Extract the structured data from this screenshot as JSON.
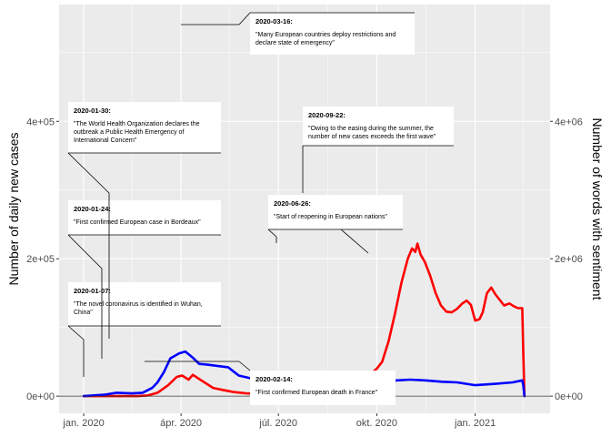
{
  "chart_data": {
    "type": "line",
    "ylabel": "Number of daily new cases",
    "y2label": "Number of words with sentiment",
    "x_ticks": [
      {
        "date": "2020-01-01",
        "label": "jan. 2020"
      },
      {
        "date": "2020-04-01",
        "label": "ápr. 2020"
      },
      {
        "date": "2020-07-01",
        "label": "júl. 2020"
      },
      {
        "date": "2020-10-01",
        "label": "okt. 2020"
      },
      {
        "date": "2021-01-01",
        "label": "jan. 2021"
      }
    ],
    "xlim": [
      "2019-12-09",
      "2021-03-12"
    ],
    "ylim": [
      -25000,
      570000
    ],
    "y_ticks": [
      {
        "value": 0,
        "label": "0e+00"
      },
      {
        "value": 200000,
        "label": "2e+05"
      },
      {
        "value": 400000,
        "label": "4e+05"
      }
    ],
    "y2lim": [
      -250000,
      5700000
    ],
    "y2_ticks": [
      {
        "value": 0,
        "label": "0e+00"
      },
      {
        "value": 2000000,
        "label": "2e+06"
      },
      {
        "value": 4000000,
        "label": "4e+06"
      }
    ],
    "grid": true,
    "zero_line": true,
    "series": [
      {
        "color": "#ff0000",
        "axis": "left",
        "points": [
          [
            "2020-01-01",
            0
          ],
          [
            "2020-02-01",
            0
          ],
          [
            "2020-02-20",
            0
          ],
          [
            "2020-03-01",
            1000
          ],
          [
            "2020-03-10",
            5000
          ],
          [
            "2020-03-20",
            16000
          ],
          [
            "2020-03-28",
            28000
          ],
          [
            "2020-04-02",
            30000
          ],
          [
            "2020-04-08",
            24000
          ],
          [
            "2020-04-12",
            31000
          ],
          [
            "2020-04-18",
            25000
          ],
          [
            "2020-04-25",
            18000
          ],
          [
            "2020-05-01",
            12000
          ],
          [
            "2020-05-10",
            9000
          ],
          [
            "2020-05-20",
            6000
          ],
          [
            "2020-06-01",
            4000
          ],
          [
            "2020-06-15",
            3000
          ],
          [
            "2020-07-01",
            4000
          ],
          [
            "2020-07-20",
            5000
          ],
          [
            "2020-08-01",
            6000
          ],
          [
            "2020-08-20",
            10000
          ],
          [
            "2020-09-01",
            18000
          ],
          [
            "2020-09-15",
            28000
          ],
          [
            "2020-09-25",
            32000
          ],
          [
            "2020-10-01",
            40000
          ],
          [
            "2020-10-06",
            50000
          ],
          [
            "2020-10-12",
            80000
          ],
          [
            "2020-10-18",
            120000
          ],
          [
            "2020-10-24",
            165000
          ],
          [
            "2020-10-30",
            200000
          ],
          [
            "2020-11-03",
            215000
          ],
          [
            "2020-11-06",
            210000
          ],
          [
            "2020-11-08",
            222000
          ],
          [
            "2020-11-11",
            206000
          ],
          [
            "2020-11-15",
            195000
          ],
          [
            "2020-11-20",
            175000
          ],
          [
            "2020-11-25",
            150000
          ],
          [
            "2020-11-30",
            132000
          ],
          [
            "2020-12-05",
            123000
          ],
          [
            "2020-12-10",
            122000
          ],
          [
            "2020-12-15",
            127000
          ],
          [
            "2020-12-20",
            135000
          ],
          [
            "2020-12-24",
            139000
          ],
          [
            "2020-12-28",
            133000
          ],
          [
            "2021-01-01",
            110000
          ],
          [
            "2021-01-05",
            112000
          ],
          [
            "2021-01-08",
            122000
          ],
          [
            "2021-01-12",
            150000
          ],
          [
            "2021-01-16",
            158000
          ],
          [
            "2021-01-20",
            148000
          ],
          [
            "2021-01-24",
            140000
          ],
          [
            "2021-01-28",
            132000
          ],
          [
            "2021-02-02",
            135000
          ],
          [
            "2021-02-06",
            131000
          ],
          [
            "2021-02-10",
            128000
          ],
          [
            "2021-02-14",
            128000
          ],
          [
            "2021-02-15",
            60000
          ],
          [
            "2021-02-16",
            0
          ]
        ]
      },
      {
        "color": "#0000ff",
        "axis": "right",
        "points": [
          [
            "2020-01-01",
            0
          ],
          [
            "2020-01-20",
            20000
          ],
          [
            "2020-02-01",
            50000
          ],
          [
            "2020-02-15",
            40000
          ],
          [
            "2020-02-25",
            50000
          ],
          [
            "2020-03-05",
            120000
          ],
          [
            "2020-03-10",
            200000
          ],
          [
            "2020-03-16",
            350000
          ],
          [
            "2020-03-22",
            550000
          ],
          [
            "2020-03-30",
            620000
          ],
          [
            "2020-04-05",
            650000
          ],
          [
            "2020-04-12",
            560000
          ],
          [
            "2020-04-18",
            470000
          ],
          [
            "2020-04-25",
            460000
          ],
          [
            "2020-05-05",
            440000
          ],
          [
            "2020-05-15",
            420000
          ],
          [
            "2020-05-25",
            300000
          ],
          [
            "2020-06-05",
            260000
          ],
          [
            "2020-06-20",
            220000
          ],
          [
            "2020-07-01",
            200000
          ],
          [
            "2020-07-15",
            190000
          ],
          [
            "2020-08-01",
            180000
          ],
          [
            "2020-08-20",
            170000
          ],
          [
            "2020-09-01",
            170000
          ],
          [
            "2020-09-20",
            180000
          ],
          [
            "2020-10-01",
            200000
          ],
          [
            "2020-10-20",
            230000
          ],
          [
            "2020-11-01",
            240000
          ],
          [
            "2020-11-15",
            230000
          ],
          [
            "2020-12-01",
            210000
          ],
          [
            "2020-12-15",
            200000
          ],
          [
            "2021-01-01",
            160000
          ],
          [
            "2021-01-20",
            180000
          ],
          [
            "2021-02-05",
            200000
          ],
          [
            "2021-02-14",
            230000
          ],
          [
            "2021-02-15",
            150000
          ],
          [
            "2021-02-16",
            0
          ]
        ]
      }
    ],
    "annotations": [
      {
        "date": "2020-01-07:",
        "text": "\"The novel coronavirus is identified in Wuhan,\nChina\""
      },
      {
        "date": "2020-01-24:",
        "text": "\"First confirmed European case in Bordeaux\""
      },
      {
        "date": "2020-01-30:",
        "text": "\"The World Health Organization declares the\noutbreak a Public Health Emergency of\nInternational Concern\""
      },
      {
        "date": "2020-02-14:",
        "text": "\"First confirmed European death in France\""
      },
      {
        "date": "2020-03-16:",
        "text": "\"Many European countries deploy restrictions and\ndeclare state of emergency\""
      },
      {
        "date": "2020-06-26:",
        "text": "\"Start of reopening in European nations\""
      },
      {
        "date": "2020-09-22:",
        "text": "\"Owing to the easing during the summer, the\nnumber of new cases exceeds the first wave\""
      }
    ]
  }
}
